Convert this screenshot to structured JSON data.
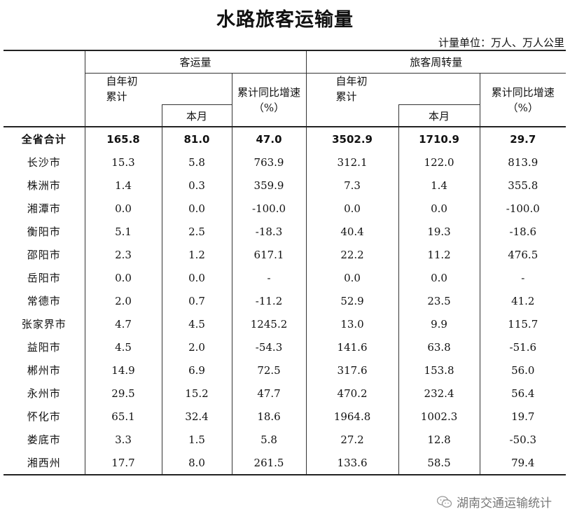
{
  "title": "水路旅客运输量",
  "unit_note": "计量单位：万人、万人公里",
  "header": {
    "group_passenger_volume": "客运量",
    "group_passenger_turnover": "旅客周转量",
    "ytd_line1": "自年初",
    "ytd_line2": "累计",
    "this_month": "本月",
    "yoy_line1": "累计同比增速",
    "yoy_line2": "（%）"
  },
  "rows": [
    {
      "name": "全省合计",
      "pv_ytd": "165.8",
      "pv_month": "81.0",
      "pv_yoy": "47.0",
      "pt_ytd": "3502.9",
      "pt_month": "1710.9",
      "pt_yoy": "29.7"
    },
    {
      "name": "长沙市",
      "pv_ytd": "15.3",
      "pv_month": "5.8",
      "pv_yoy": "763.9",
      "pt_ytd": "312.1",
      "pt_month": "122.0",
      "pt_yoy": "813.9"
    },
    {
      "name": "株洲市",
      "pv_ytd": "1.4",
      "pv_month": "0.3",
      "pv_yoy": "359.9",
      "pt_ytd": "7.3",
      "pt_month": "1.4",
      "pt_yoy": "355.8"
    },
    {
      "name": "湘潭市",
      "pv_ytd": "0.0",
      "pv_month": "0.0",
      "pv_yoy": "-100.0",
      "pt_ytd": "0.0",
      "pt_month": "0.0",
      "pt_yoy": "-100.0"
    },
    {
      "name": "衡阳市",
      "pv_ytd": "5.1",
      "pv_month": "2.5",
      "pv_yoy": "-18.3",
      "pt_ytd": "40.4",
      "pt_month": "19.3",
      "pt_yoy": "-18.6"
    },
    {
      "name": "邵阳市",
      "pv_ytd": "2.3",
      "pv_month": "1.2",
      "pv_yoy": "617.1",
      "pt_ytd": "22.2",
      "pt_month": "11.2",
      "pt_yoy": "476.5"
    },
    {
      "name": "岳阳市",
      "pv_ytd": "0.0",
      "pv_month": "0.0",
      "pv_yoy": "-",
      "pt_ytd": "0.0",
      "pt_month": "0.0",
      "pt_yoy": "-"
    },
    {
      "name": "常德市",
      "pv_ytd": "2.0",
      "pv_month": "0.7",
      "pv_yoy": "-11.2",
      "pt_ytd": "52.9",
      "pt_month": "23.5",
      "pt_yoy": "41.2"
    },
    {
      "name": "张家界市",
      "pv_ytd": "4.7",
      "pv_month": "4.5",
      "pv_yoy": "1245.2",
      "pt_ytd": "13.0",
      "pt_month": "9.9",
      "pt_yoy": "115.7"
    },
    {
      "name": "益阳市",
      "pv_ytd": "4.5",
      "pv_month": "2.0",
      "pv_yoy": "-54.3",
      "pt_ytd": "141.6",
      "pt_month": "63.8",
      "pt_yoy": "-51.6"
    },
    {
      "name": "郴州市",
      "pv_ytd": "14.9",
      "pv_month": "6.9",
      "pv_yoy": "72.5",
      "pt_ytd": "317.6",
      "pt_month": "153.8",
      "pt_yoy": "56.0"
    },
    {
      "name": "永州市",
      "pv_ytd": "29.5",
      "pv_month": "15.2",
      "pv_yoy": "47.7",
      "pt_ytd": "470.2",
      "pt_month": "232.4",
      "pt_yoy": "56.4"
    },
    {
      "name": "怀化市",
      "pv_ytd": "65.1",
      "pv_month": "32.4",
      "pv_yoy": "18.6",
      "pt_ytd": "1964.8",
      "pt_month": "1002.3",
      "pt_yoy": "19.7"
    },
    {
      "name": "娄底市",
      "pv_ytd": "3.3",
      "pv_month": "1.5",
      "pv_yoy": "5.8",
      "pt_ytd": "27.2",
      "pt_month": "12.8",
      "pt_yoy": "-50.3"
    },
    {
      "name": "湘西州",
      "pv_ytd": "17.7",
      "pv_month": "8.0",
      "pv_yoy": "261.5",
      "pt_ytd": "133.6",
      "pt_month": "58.5",
      "pt_yoy": "79.4"
    }
  ],
  "footer": {
    "icon": "wechat-icon",
    "source": "湖南交通运输统计"
  }
}
